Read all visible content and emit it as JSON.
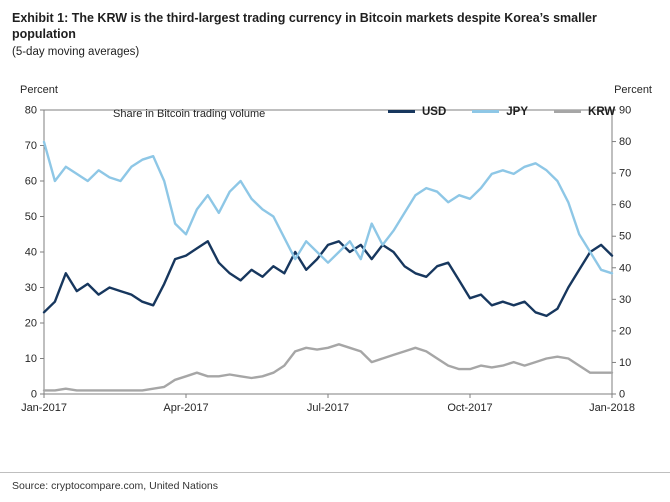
{
  "header": {
    "title": "Exhibit 1: The KRW is the third-largest trading currency in Bitcoin markets despite Korea’s smaller population",
    "subtitle": "(5-day moving averages)"
  },
  "axes": {
    "left_label": "Percent",
    "right_label": "Percent"
  },
  "footer": {
    "source": "Source: cryptocompare.com, United Nations"
  },
  "chart_data": {
    "type": "line",
    "title": "Share in Bitcoin trading volume",
    "annotation": "Share in Bitcoin trading volume",
    "x_tick_labels": [
      "Jan-2017",
      "Apr-2017",
      "Jul-2017",
      "Oct-2017",
      "Jan-2018"
    ],
    "x_tick_positions": [
      0,
      13,
      26,
      39,
      52
    ],
    "left_axis": {
      "label": "Percent",
      "min": 0,
      "max": 80,
      "step": 10
    },
    "right_axis": {
      "label": "Percent",
      "min": 0,
      "max": 90,
      "step": 10
    },
    "grid": false,
    "legend_position": "top-inside",
    "series": [
      {
        "name": "USD",
        "color": "#17375e",
        "axis": "left",
        "values": [
          23,
          26,
          34,
          29,
          31,
          28,
          30,
          29,
          28,
          26,
          25,
          31,
          38,
          39,
          41,
          43,
          37,
          34,
          32,
          35,
          33,
          36,
          34,
          40,
          35,
          38,
          42,
          43,
          40,
          42,
          38,
          42,
          40,
          36,
          34,
          33,
          36,
          37,
          32,
          27,
          28,
          25,
          26,
          25,
          26,
          23,
          22,
          24,
          30,
          35,
          40,
          42,
          39
        ]
      },
      {
        "name": "JPY",
        "color": "#8ec7e6",
        "axis": "left",
        "values": [
          71,
          60,
          64,
          62,
          60,
          63,
          61,
          60,
          64,
          66,
          67,
          60,
          48,
          45,
          52,
          56,
          51,
          57,
          60,
          55,
          52,
          50,
          44,
          38,
          43,
          40,
          37,
          40,
          43,
          38,
          48,
          42,
          46,
          51,
          56,
          58,
          57,
          54,
          56,
          55,
          58,
          62,
          63,
          62,
          64,
          65,
          63,
          60,
          54,
          45,
          40,
          35,
          34
        ]
      },
      {
        "name": "KRW",
        "color": "#a6a6a6",
        "axis": "left",
        "values": [
          1,
          1,
          1.5,
          1,
          1,
          1,
          1,
          1,
          1,
          1,
          1.5,
          2,
          4,
          5,
          6,
          5,
          5,
          5.5,
          5,
          4.5,
          5,
          6,
          8,
          12,
          13,
          12.5,
          13,
          14,
          13,
          12,
          9,
          10,
          11,
          12,
          13,
          12,
          10,
          8,
          7,
          7,
          8,
          7.5,
          8,
          9,
          8,
          9,
          10,
          10.5,
          10,
          8,
          6,
          6,
          6
        ]
      }
    ]
  }
}
